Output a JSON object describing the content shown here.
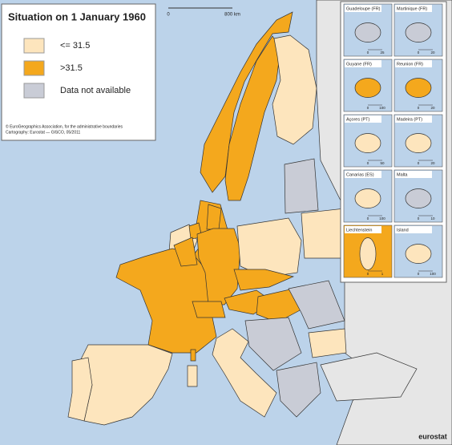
{
  "title": "Situation on 1 January 1960",
  "legend": [
    {
      "label": "<= 31.5",
      "color": "#fde5bd"
    },
    {
      "label": ">31.5",
      "color": "#f4a81d"
    },
    {
      "label": "Data not available",
      "color": "#c9ccd6"
    }
  ],
  "credits": [
    "© EuroGeographics Association, for the administrative boundaries",
    "Cartography: Eurostat — GISCO, 05/2011"
  ],
  "scale": [
    "0",
    "800 km"
  ],
  "insets": [
    {
      "label": "Guadeloupe (FR)",
      "scale": [
        "0",
        "25"
      ]
    },
    {
      "label": "Martinique (FR)",
      "scale": [
        "0",
        "20"
      ]
    },
    {
      "label": "Guyane (FR)",
      "scale": [
        "0",
        "100"
      ]
    },
    {
      "label": "Reunion (FR)",
      "scale": [
        "0",
        "20"
      ]
    },
    {
      "label": "Açores (PT)",
      "scale": [
        "0",
        "50"
      ]
    },
    {
      "label": "Madeira (PT)",
      "scale": [
        "0",
        "20"
      ]
    },
    {
      "label": "Canarias (ES)",
      "scale": [
        "0",
        "100"
      ]
    },
    {
      "label": "Malta",
      "scale": [
        "0",
        "10"
      ]
    },
    {
      "label": "Liechtenstein",
      "scale": [
        "0",
        "1"
      ]
    },
    {
      "label": "Island",
      "scale": [
        "0",
        "100"
      ]
    }
  ],
  "logo": "eurostat"
}
